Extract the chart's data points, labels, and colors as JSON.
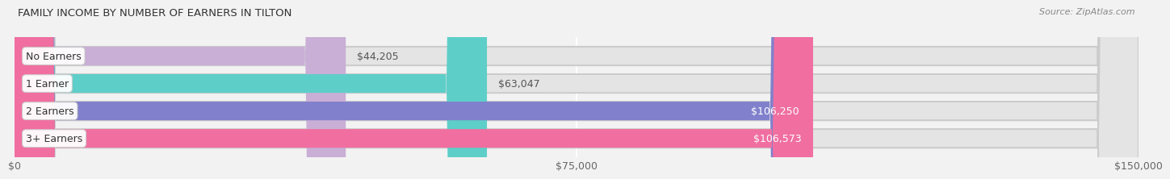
{
  "title": "FAMILY INCOME BY NUMBER OF EARNERS IN TILTON",
  "source": "Source: ZipAtlas.com",
  "categories": [
    "No Earners",
    "1 Earner",
    "2 Earners",
    "3+ Earners"
  ],
  "values": [
    44205,
    63047,
    106250,
    106573
  ],
  "bar_colors": [
    "#c9aed6",
    "#5ecec8",
    "#8080cc",
    "#f06fa0"
  ],
  "label_colors": [
    "#555555",
    "#555555",
    "#ffffff",
    "#ffffff"
  ],
  "max_value": 150000,
  "xticks": [
    0,
    75000,
    150000
  ],
  "xtick_labels": [
    "$0",
    "$75,000",
    "$150,000"
  ],
  "background_color": "#f2f2f2",
  "bar_bg_color": "#e4e4e4",
  "value_labels": [
    "$44,205",
    "$63,047",
    "$106,250",
    "$106,573"
  ]
}
